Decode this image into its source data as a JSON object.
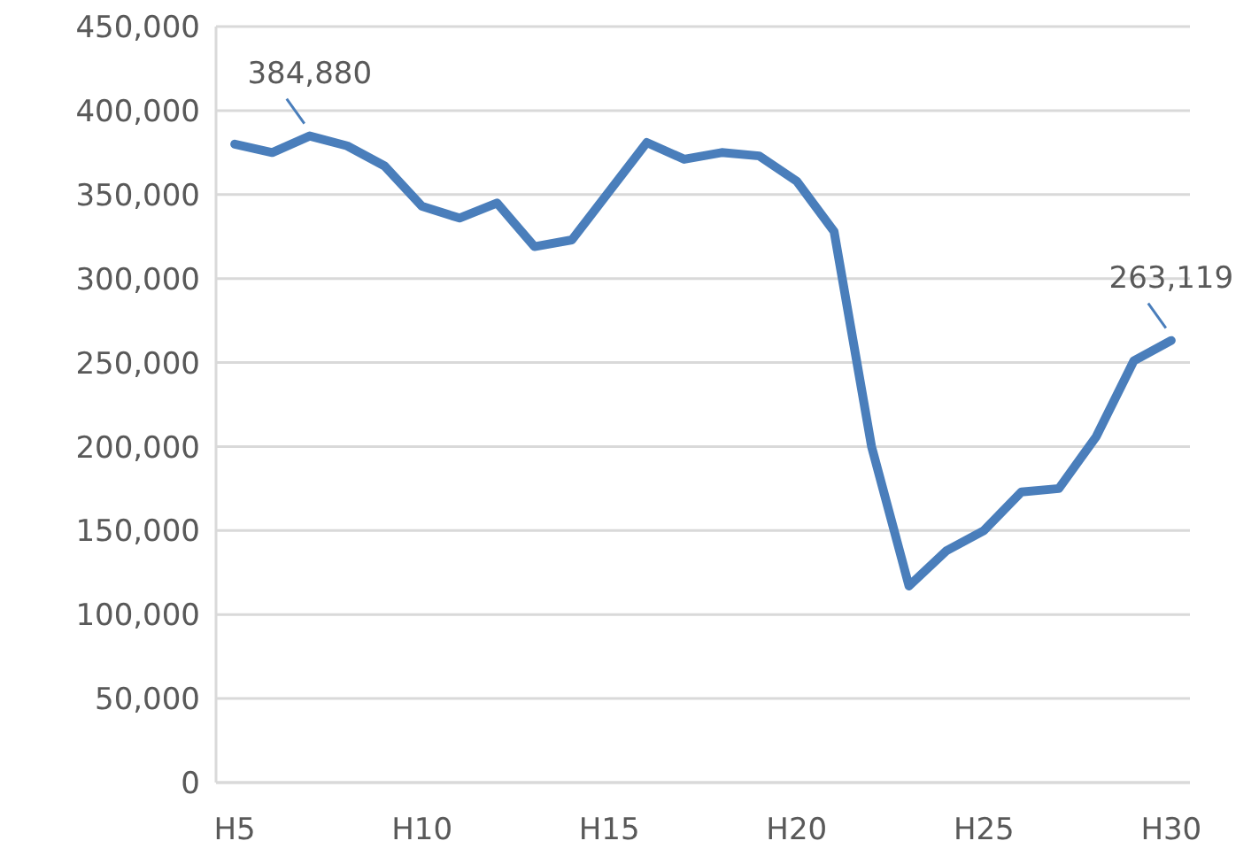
{
  "chart_data": {
    "type": "line",
    "categories": [
      "H5",
      null,
      null,
      null,
      null,
      "H10",
      null,
      null,
      null,
      null,
      "H15",
      null,
      null,
      null,
      null,
      "H20",
      null,
      null,
      null,
      null,
      "H25",
      null,
      null,
      null,
      null,
      "H30"
    ],
    "values": [
      380000,
      375000,
      384880,
      379000,
      367000,
      343000,
      336000,
      345000,
      319000,
      323000,
      352000,
      381000,
      371000,
      375000,
      373000,
      358000,
      328000,
      200000,
      117000,
      138000,
      150000,
      173000,
      175000,
      206000,
      251000,
      263119
    ],
    "value_labels": [
      null,
      null,
      "384,880",
      null,
      null,
      null,
      null,
      null,
      null,
      null,
      null,
      null,
      null,
      null,
      null,
      null,
      null,
      null,
      null,
      null,
      null,
      null,
      null,
      null,
      null,
      "263,119"
    ],
    "color": "#4a7ebb",
    "ylim": [
      0,
      450000
    ],
    "yticks": [
      0,
      {
        "value": 50000,
        "label": "50,000"
      },
      {
        "value": 100000,
        "label": "100,000"
      },
      {
        "value": 150000,
        "label": "150,000"
      },
      {
        "value": 200000,
        "label": "200,000"
      },
      {
        "value": 250000,
        "label": "250,000"
      },
      {
        "value": 300000,
        "label": "300,000"
      },
      {
        "value": 350000,
        "label": "350,000"
      },
      {
        "value": 400000,
        "label": "400,000"
      },
      {
        "value": 450000,
        "label": "450,000"
      }
    ],
    "grid": "y",
    "marker": "none",
    "line_style": "solid"
  }
}
